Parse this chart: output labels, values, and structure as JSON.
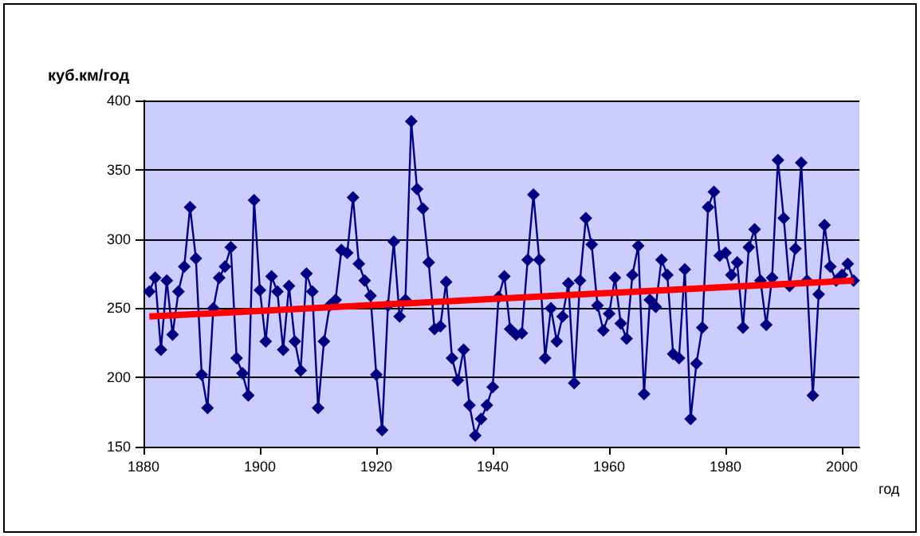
{
  "chart_data": {
    "type": "line",
    "ylabel": "куб.км/год",
    "xlabel": "год",
    "x": [
      1881,
      1882,
      1883,
      1884,
      1885,
      1886,
      1887,
      1888,
      1889,
      1890,
      1891,
      1892,
      1893,
      1894,
      1895,
      1896,
      1897,
      1898,
      1899,
      1900,
      1901,
      1902,
      1903,
      1904,
      1905,
      1906,
      1907,
      1908,
      1909,
      1910,
      1911,
      1912,
      1913,
      1914,
      1915,
      1916,
      1917,
      1918,
      1919,
      1920,
      1921,
      1922,
      1923,
      1924,
      1925,
      1926,
      1927,
      1928,
      1929,
      1930,
      1931,
      1932,
      1933,
      1934,
      1935,
      1936,
      1937,
      1938,
      1939,
      1940,
      1941,
      1942,
      1943,
      1944,
      1945,
      1946,
      1947,
      1948,
      1949,
      1950,
      1951,
      1952,
      1953,
      1954,
      1955,
      1956,
      1957,
      1958,
      1959,
      1960,
      1961,
      1962,
      1963,
      1964,
      1965,
      1966,
      1967,
      1968,
      1969,
      1970,
      1971,
      1972,
      1973,
      1974,
      1975,
      1976,
      1977,
      1978,
      1979,
      1980,
      1981,
      1982,
      1983,
      1984,
      1985,
      1986,
      1987,
      1988,
      1989,
      1990,
      1991,
      1992,
      1993,
      1994,
      1995,
      1996,
      1997,
      1998,
      1999,
      2000,
      2001,
      2002
    ],
    "series": [
      {
        "color": "#000080",
        "marker": "diamond",
        "values": [
          262,
          272,
          220,
          270,
          231,
          262,
          280,
          323,
          286,
          202,
          178,
          250,
          272,
          280,
          294,
          214,
          203,
          187,
          328,
          263,
          226,
          273,
          262,
          220,
          266,
          226,
          205,
          275,
          262,
          178,
          226,
          252,
          256,
          292,
          290,
          330,
          282,
          270,
          259,
          202,
          162,
          252,
          298,
          244,
          256,
          385,
          336,
          322,
          283,
          235,
          237,
          269,
          214,
          198,
          220,
          180,
          158,
          170,
          180,
          193,
          258,
          273,
          235,
          231,
          232,
          285,
          332,
          285,
          214,
          250,
          226,
          244,
          268,
          196,
          270,
          315,
          296,
          252,
          234,
          246,
          272,
          239,
          228,
          274,
          295,
          188,
          256,
          251,
          285,
          274,
          217,
          214,
          278,
          170,
          210,
          236,
          323,
          334,
          288,
          290,
          274,
          283,
          236,
          294,
          307,
          270,
          238,
          272,
          357,
          315,
          266,
          293,
          355,
          270,
          187,
          260,
          310,
          280,
          270,
          274,
          282,
          270
        ]
      },
      {
        "type": "line",
        "color": "#ff0000",
        "marker": "none",
        "x": [
          1881,
          2002
        ],
        "values": [
          244,
          270
        ]
      }
    ],
    "xlim": [
      1880,
      2003
    ],
    "xticks": [
      1880,
      1900,
      1920,
      1940,
      1960,
      1980,
      2000
    ],
    "ylim": [
      150,
      400
    ],
    "yticks": [
      150,
      200,
      250,
      300,
      350,
      400
    ],
    "grid": "y"
  }
}
